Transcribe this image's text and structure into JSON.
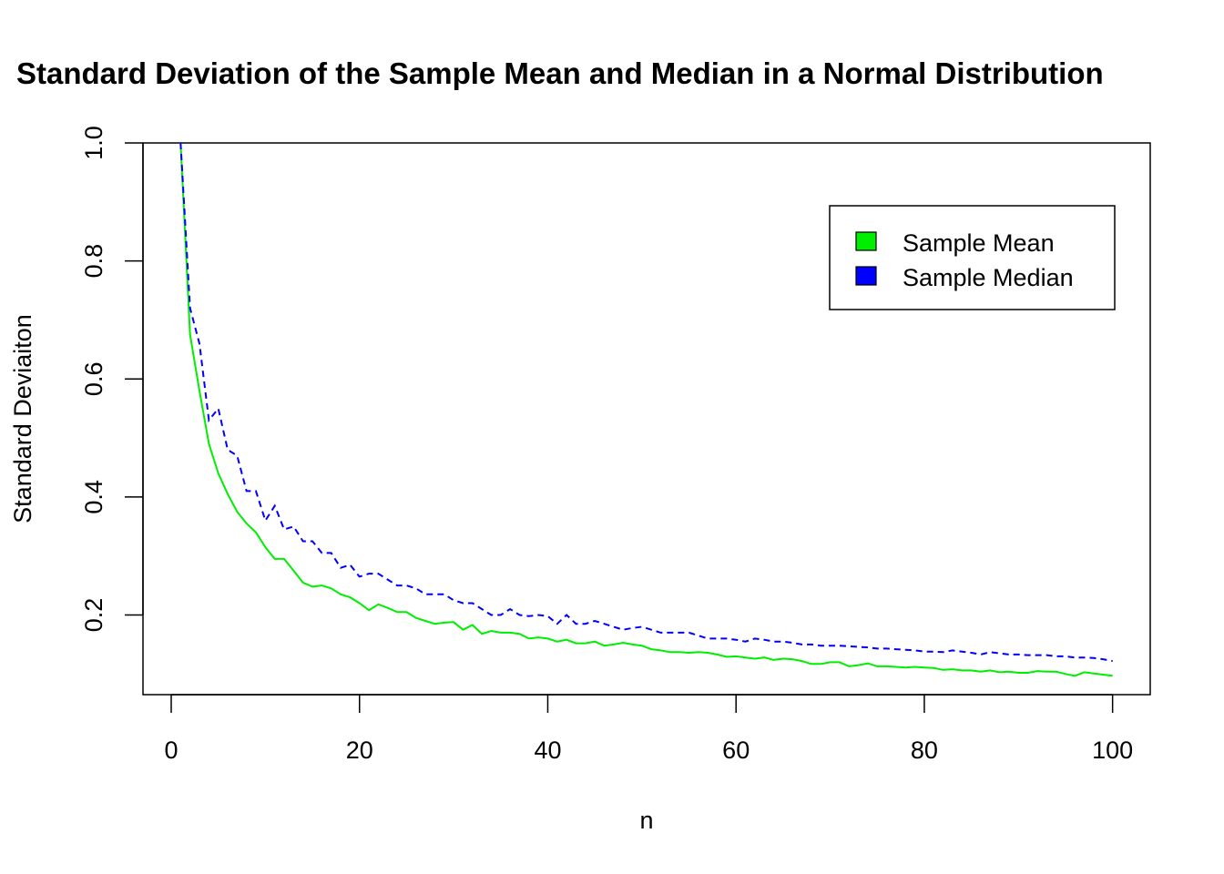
{
  "chart_data": {
    "type": "line",
    "title": "Standard Deviation of the Sample Mean and Median in a Normal Distribution",
    "xlabel": "n",
    "ylabel": "Standard Deviaiton",
    "xlim": [
      -3,
      104
    ],
    "ylim": [
      0.065,
      1.0
    ],
    "x_ticks": [
      0,
      20,
      40,
      60,
      80,
      100
    ],
    "x_tick_labels": [
      "0",
      "20",
      "40",
      "60",
      "80",
      "100"
    ],
    "y_ticks": [
      0.2,
      0.4,
      0.6,
      0.8,
      1.0
    ],
    "y_tick_labels": [
      "0.2",
      "0.4",
      "0.6",
      "0.8",
      "1.0"
    ],
    "grid": false,
    "legend_position": "top-right",
    "legend": [
      {
        "label": "Sample Mean",
        "color": "#00ee00"
      },
      {
        "label": "Sample Median",
        "color": "#0000ff"
      }
    ],
    "x": [
      1,
      2,
      3,
      4,
      5,
      6,
      7,
      8,
      9,
      10,
      11,
      12,
      13,
      14,
      15,
      16,
      17,
      18,
      19,
      20,
      21,
      22,
      23,
      24,
      25,
      26,
      27,
      28,
      29,
      30,
      31,
      32,
      33,
      34,
      35,
      36,
      37,
      38,
      39,
      40,
      41,
      42,
      43,
      44,
      45,
      46,
      47,
      48,
      49,
      50,
      51,
      52,
      53,
      54,
      55,
      56,
      57,
      58,
      59,
      60,
      61,
      62,
      63,
      64,
      65,
      66,
      67,
      68,
      69,
      70,
      71,
      72,
      73,
      74,
      75,
      76,
      77,
      78,
      79,
      80,
      81,
      82,
      83,
      84,
      85,
      86,
      87,
      88,
      89,
      90,
      91,
      92,
      93,
      94,
      95,
      96,
      97,
      98,
      99,
      100
    ],
    "series": [
      {
        "name": "Sample Mean",
        "color": "#00ee00",
        "style": "solid",
        "values": [
          1.0,
          0.675,
          0.58,
          0.49,
          0.44,
          0.405,
          0.375,
          0.355,
          0.34,
          0.315,
          0.295,
          0.295,
          0.275,
          0.255,
          0.248,
          0.25,
          0.245,
          0.235,
          0.23,
          0.22,
          0.208,
          0.218,
          0.212,
          0.205,
          0.205,
          0.195,
          0.19,
          0.185,
          0.187,
          0.188,
          0.175,
          0.183,
          0.168,
          0.173,
          0.17,
          0.17,
          0.168,
          0.16,
          0.162,
          0.16,
          0.155,
          0.158,
          0.152,
          0.152,
          0.155,
          0.148,
          0.15,
          0.153,
          0.15,
          0.148,
          0.142,
          0.14,
          0.137,
          0.137,
          0.136,
          0.137,
          0.136,
          0.133,
          0.129,
          0.13,
          0.128,
          0.126,
          0.128,
          0.124,
          0.126,
          0.125,
          0.122,
          0.117,
          0.117,
          0.12,
          0.12,
          0.113,
          0.115,
          0.118,
          0.113,
          0.113,
          0.112,
          0.111,
          0.112,
          0.111,
          0.11,
          0.107,
          0.108,
          0.106,
          0.106,
          0.104,
          0.106,
          0.103,
          0.104,
          0.102,
          0.102,
          0.105,
          0.104,
          0.104,
          0.1,
          0.097,
          0.103,
          0.101,
          0.099,
          0.097
        ]
      },
      {
        "name": "Sample Median",
        "color": "#0000ff",
        "style": "dashed",
        "values": [
          1.0,
          0.72,
          0.66,
          0.53,
          0.55,
          0.48,
          0.47,
          0.41,
          0.41,
          0.36,
          0.385,
          0.345,
          0.35,
          0.325,
          0.325,
          0.305,
          0.305,
          0.28,
          0.285,
          0.265,
          0.27,
          0.27,
          0.26,
          0.25,
          0.25,
          0.245,
          0.235,
          0.235,
          0.235,
          0.225,
          0.22,
          0.22,
          0.21,
          0.2,
          0.2,
          0.21,
          0.2,
          0.198,
          0.2,
          0.198,
          0.185,
          0.2,
          0.185,
          0.185,
          0.19,
          0.185,
          0.18,
          0.175,
          0.178,
          0.18,
          0.175,
          0.17,
          0.17,
          0.17,
          0.17,
          0.165,
          0.16,
          0.16,
          0.16,
          0.158,
          0.155,
          0.16,
          0.158,
          0.155,
          0.155,
          0.153,
          0.15,
          0.15,
          0.148,
          0.148,
          0.148,
          0.147,
          0.146,
          0.145,
          0.143,
          0.143,
          0.142,
          0.141,
          0.14,
          0.138,
          0.138,
          0.137,
          0.14,
          0.138,
          0.136,
          0.133,
          0.137,
          0.135,
          0.133,
          0.133,
          0.132,
          0.132,
          0.132,
          0.13,
          0.13,
          0.128,
          0.128,
          0.127,
          0.125,
          0.122
        ]
      }
    ]
  }
}
